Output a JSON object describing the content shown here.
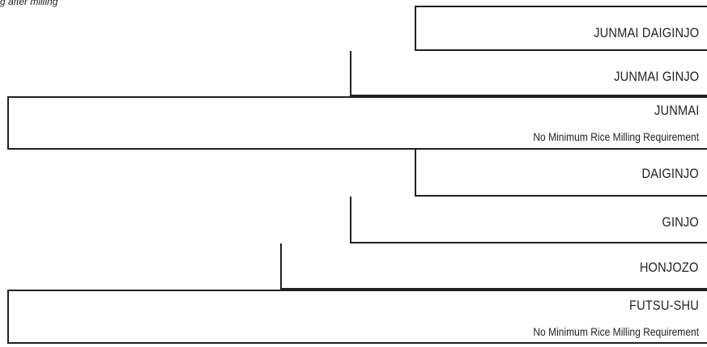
{
  "caption": "g after milling",
  "grades": [
    {
      "name": "JUNMAI DAIGINJO",
      "note": ""
    },
    {
      "name": "JUNMAI GINJO",
      "note": ""
    },
    {
      "name": "JUNMAI",
      "note": "No Minimum Rice Milling Requirement"
    },
    {
      "name": "DAIGINJO",
      "note": ""
    },
    {
      "name": "GINJO",
      "note": ""
    },
    {
      "name": "HONJOZO",
      "note": ""
    },
    {
      "name": "FUTSU-SHU",
      "note": "No Minimum Rice Milling Requirement"
    }
  ],
  "colors": {
    "line": "#231f20",
    "text": "#231f20",
    "background": "#ffffff"
  }
}
